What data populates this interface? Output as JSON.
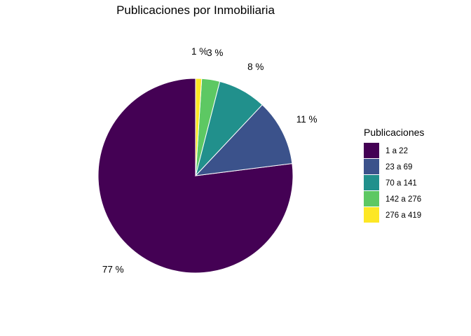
{
  "chart_data": {
    "type": "pie",
    "title": "Publicaciones por Inmobiliaria",
    "categories": [
      "1 a 22",
      "23 a 69",
      "70 a 141",
      "142 a 276",
      "276 a 419"
    ],
    "values": [
      77,
      11,
      8,
      3,
      1
    ],
    "labels": [
      "77 %",
      "11 %",
      "8 %",
      "3 %",
      "1 %"
    ],
    "colors": [
      "#440154",
      "#3B528B",
      "#21908C",
      "#5DC863",
      "#FDE725"
    ],
    "legend": {
      "title": "Publicaciones",
      "position": "right"
    },
    "direction": "counterclockwise",
    "start": "top"
  }
}
